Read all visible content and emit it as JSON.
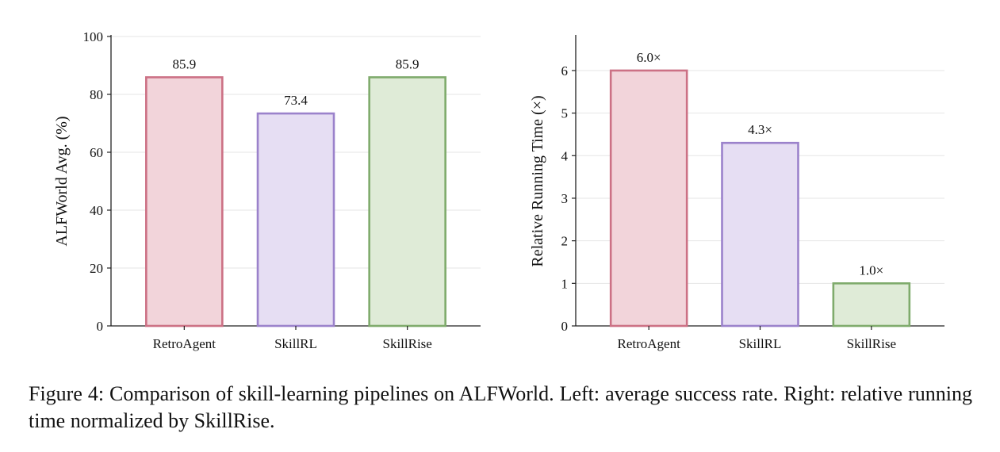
{
  "chart_data": [
    {
      "type": "bar",
      "categories": [
        "RetroAgent",
        "SkillRL",
        "SkillRise"
      ],
      "values": [
        85.9,
        73.4,
        85.9
      ],
      "value_labels": [
        "85.9",
        "73.4",
        "85.9"
      ],
      "title": "",
      "xlabel": "",
      "ylabel": "ALFWorld Avg. (%)",
      "ylim": [
        0,
        100
      ],
      "yticks": [
        0,
        20,
        40,
        60,
        80,
        100
      ],
      "grid": true,
      "colors": {
        "fill": [
          "#f2d4da",
          "#e6def3",
          "#dfebd7"
        ],
        "stroke": [
          "#cc7185",
          "#9b82cb",
          "#7fab6c"
        ]
      }
    },
    {
      "type": "bar",
      "categories": [
        "RetroAgent",
        "SkillRL",
        "SkillRise"
      ],
      "values": [
        6.0,
        4.3,
        1.0
      ],
      "value_labels": [
        "6.0×",
        "4.3×",
        "1.0×"
      ],
      "title": "",
      "xlabel": "",
      "ylabel": "Relative Running Time (×)",
      "ylim": [
        0,
        6.8
      ],
      "yticks": [
        0,
        1,
        2,
        3,
        4,
        5,
        6
      ],
      "grid": true,
      "colors": {
        "fill": [
          "#f2d4da",
          "#e6def3",
          "#dfebd7"
        ],
        "stroke": [
          "#cc7185",
          "#9b82cb",
          "#7fab6c"
        ]
      }
    }
  ],
  "caption": "Figure 4: Comparison of skill-learning pipelines on ALFWorld. Left: average success rate. Right: relative running time normalized by SkillRise."
}
